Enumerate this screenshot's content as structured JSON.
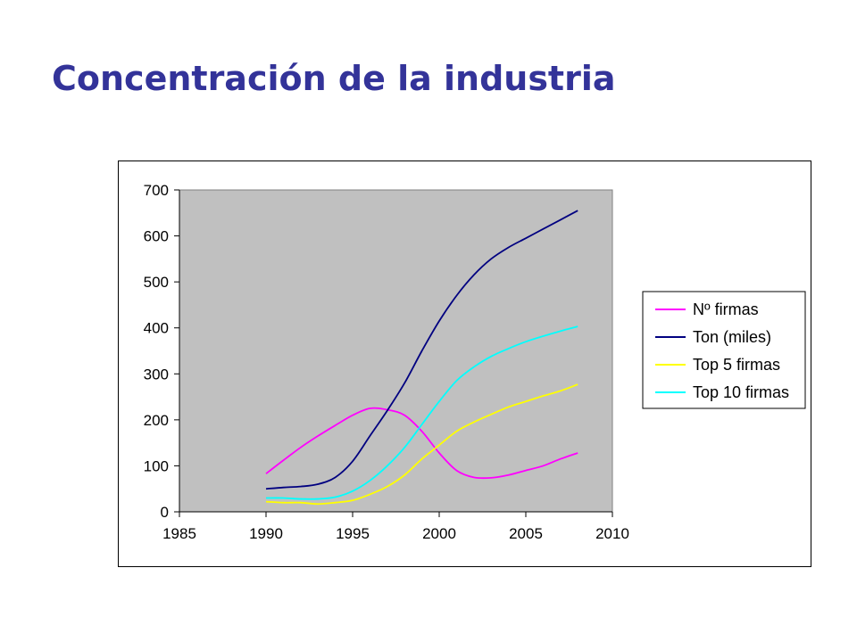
{
  "slide": {
    "title": "Concentración de la industria"
  },
  "chart_data": {
    "type": "line",
    "title": "",
    "xlabel": "",
    "ylabel": "",
    "xlim": [
      1985,
      2010
    ],
    "ylim": [
      0,
      700
    ],
    "xticks": [
      1985,
      1990,
      1995,
      2000,
      2005,
      2010
    ],
    "yticks": [
      0,
      100,
      200,
      300,
      400,
      500,
      600,
      700
    ],
    "grid": false,
    "plot_background": "#c0c0c0",
    "legend_position": "right",
    "series": [
      {
        "name": "Nº firmas",
        "color": "#ff00ff",
        "x": [
          1990,
          1991,
          1992,
          1993,
          1994,
          1995,
          1996,
          1997,
          1998,
          1999,
          2000,
          2001,
          2002,
          2003,
          2004,
          2005,
          2006,
          2007,
          2008
        ],
        "y": [
          83,
          112,
          140,
          165,
          188,
          210,
          225,
          222,
          210,
          175,
          128,
          90,
          75,
          74,
          80,
          90,
          100,
          115,
          128
        ]
      },
      {
        "name": "Ton (miles)",
        "color": "#000080",
        "x": [
          1990,
          1991,
          1992,
          1993,
          1994,
          1995,
          1996,
          1997,
          1998,
          1999,
          2000,
          2001,
          2002,
          2003,
          2004,
          2005,
          2006,
          2007,
          2008
        ],
        "y": [
          50,
          53,
          55,
          60,
          75,
          110,
          165,
          220,
          280,
          350,
          415,
          470,
          515,
          550,
          575,
          595,
          615,
          635,
          655
        ]
      },
      {
        "name": "Top 5 firmas",
        "color": "#ffff00",
        "x": [
          1990,
          1991,
          1992,
          1993,
          1994,
          1995,
          1996,
          1997,
          1998,
          1999,
          2000,
          2001,
          2002,
          2003,
          2004,
          2005,
          2006,
          2007,
          2008
        ],
        "y": [
          22,
          20,
          20,
          17,
          20,
          25,
          38,
          55,
          80,
          115,
          145,
          175,
          195,
          212,
          228,
          240,
          252,
          263,
          277
        ]
      },
      {
        "name": "Top 10 firmas",
        "color": "#00ffff",
        "x": [
          1990,
          1991,
          1992,
          1993,
          1994,
          1995,
          1996,
          1997,
          1998,
          1999,
          2000,
          2001,
          2002,
          2003,
          2004,
          2005,
          2006,
          2007,
          2008
        ],
        "y": [
          30,
          30,
          28,
          28,
          32,
          45,
          68,
          100,
          140,
          190,
          240,
          285,
          315,
          338,
          355,
          370,
          382,
          393,
          403
        ]
      }
    ]
  }
}
